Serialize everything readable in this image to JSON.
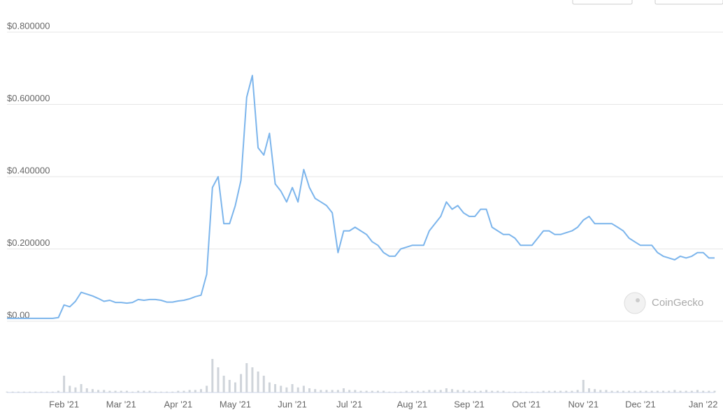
{
  "chart_data": {
    "type": "line",
    "watermark": "CoinGecko",
    "color": "#7cb5ec",
    "volume_color": "#cfd4da",
    "grid": true,
    "ylim": [
      0,
      0.8
    ],
    "yticks": [
      {
        "value": 0,
        "label": "$0.00"
      },
      {
        "value": 0.2,
        "label": "$0.200000"
      },
      {
        "value": 0.4,
        "label": "$0.400000"
      },
      {
        "value": 0.6,
        "label": "$0.600000"
      },
      {
        "value": 0.8,
        "label": "$0.800000"
      }
    ],
    "categories": [
      null,
      null,
      null,
      null,
      null,
      null,
      null,
      null,
      null,
      null,
      "Feb '21",
      null,
      null,
      null,
      null,
      null,
      null,
      null,
      null,
      null,
      "Mar '21",
      null,
      null,
      null,
      null,
      null,
      null,
      null,
      null,
      null,
      "Apr '21",
      null,
      null,
      null,
      null,
      null,
      null,
      null,
      null,
      null,
      "May '21",
      null,
      null,
      null,
      null,
      null,
      null,
      null,
      null,
      null,
      "Jun '21",
      null,
      null,
      null,
      null,
      null,
      null,
      null,
      null,
      null,
      "Jul '21",
      null,
      null,
      null,
      null,
      null,
      null,
      null,
      null,
      null,
      null,
      "Aug '21",
      null,
      null,
      null,
      null,
      null,
      null,
      null,
      null,
      null,
      "Sep '21",
      null,
      null,
      null,
      null,
      null,
      null,
      null,
      null,
      null,
      "Oct '21",
      null,
      null,
      null,
      null,
      null,
      null,
      null,
      null,
      null,
      "Nov '21",
      null,
      null,
      null,
      null,
      null,
      null,
      null,
      null,
      null,
      "Dec '21",
      null,
      null,
      null,
      null,
      null,
      null,
      null,
      null,
      null,
      null,
      "Jan '22",
      null,
      null
    ],
    "values": [
      0.008,
      0.008,
      0.008,
      0.008,
      0.008,
      0.008,
      0.008,
      0.008,
      0.008,
      0.01,
      0.045,
      0.04,
      0.055,
      0.08,
      0.075,
      0.07,
      0.063,
      0.055,
      0.058,
      0.052,
      0.052,
      0.05,
      0.052,
      0.06,
      0.058,
      0.06,
      0.06,
      0.058,
      0.053,
      0.053,
      0.056,
      0.058,
      0.062,
      0.068,
      0.072,
      0.13,
      0.37,
      0.4,
      0.27,
      0.27,
      0.32,
      0.39,
      0.62,
      0.68,
      0.48,
      0.46,
      0.52,
      0.38,
      0.36,
      0.33,
      0.37,
      0.33,
      0.42,
      0.37,
      0.34,
      0.33,
      0.32,
      0.3,
      0.19,
      0.25,
      0.25,
      0.26,
      0.25,
      0.24,
      0.22,
      0.21,
      0.19,
      0.18,
      0.18,
      0.2,
      0.205,
      0.21,
      0.21,
      0.21,
      0.25,
      0.27,
      0.29,
      0.33,
      0.31,
      0.32,
      0.3,
      0.29,
      0.29,
      0.31,
      0.31,
      0.26,
      0.25,
      0.24,
      0.24,
      0.23,
      0.21,
      0.21,
      0.21,
      0.23,
      0.25,
      0.25,
      0.24,
      0.24,
      0.245,
      0.25,
      0.26,
      0.28,
      0.29,
      0.27,
      0.27,
      0.27,
      0.27,
      0.26,
      0.25,
      0.23,
      0.22,
      0.21,
      0.21,
      0.21,
      0.19,
      0.18,
      0.175,
      0.17,
      0.18,
      0.175,
      0.18,
      0.19,
      0.19,
      0.175,
      0.175
    ],
    "volume": [
      1,
      1,
      1,
      1,
      1,
      1,
      1,
      1,
      1,
      2,
      20,
      8,
      6,
      10,
      5,
      4,
      3,
      3,
      2,
      2,
      2,
      2,
      1,
      2,
      2,
      2,
      1,
      1,
      1,
      1,
      2,
      2,
      3,
      3,
      4,
      8,
      40,
      30,
      20,
      15,
      12,
      22,
      35,
      30,
      25,
      20,
      12,
      10,
      8,
      6,
      10,
      6,
      8,
      5,
      4,
      3,
      3,
      3,
      3,
      5,
      3,
      3,
      2,
      2,
      2,
      2,
      2,
      1,
      1,
      1,
      2,
      2,
      2,
      2,
      3,
      3,
      3,
      5,
      4,
      3,
      3,
      2,
      2,
      2,
      3,
      2,
      2,
      2,
      1,
      1,
      1,
      1,
      1,
      1,
      2,
      2,
      2,
      2,
      2,
      2,
      3,
      15,
      5,
      4,
      3,
      3,
      2,
      2,
      2,
      2,
      2,
      2,
      2,
      2,
      2,
      2,
      2,
      3,
      2,
      2,
      2,
      3,
      2,
      2,
      2
    ]
  }
}
